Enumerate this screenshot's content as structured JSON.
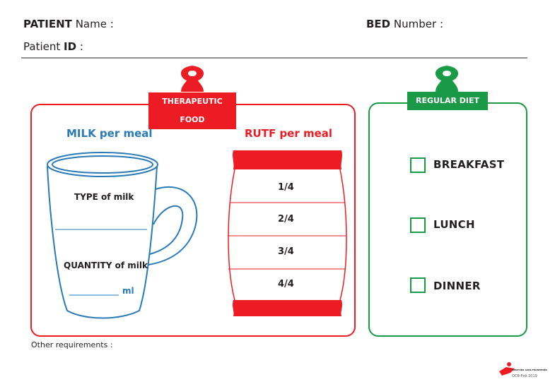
{
  "header": {
    "patient_bold": "PATIENT",
    "patient_name": "Name :",
    "bed_bold": "BED",
    "bed_number": "Number :",
    "patient_id_prefix": "Patient",
    "patient_id_bold": "ID",
    "patient_id_suffix": ":"
  },
  "therapeutic": {
    "label": "THERAPEUTIC FOOD",
    "milk_title": "MILK per meal",
    "type_of_milk": "TYPE of milk",
    "quantity_of_milk": "QUANTITY of milk",
    "ml": "ml",
    "rutf_title": "RUTF per meal",
    "rutf_portions": [
      "1/4",
      "2/4",
      "3/4",
      "4/4"
    ]
  },
  "regular": {
    "label": "REGULAR DIET",
    "meals": [
      "BREAKFAST",
      "LUNCH",
      "DINNER"
    ]
  },
  "footer": {
    "other_requirements": "Other requirements :",
    "logo_text": "MEDECINS SANS FRONTIERES",
    "version": "OCB-Feb 2019"
  },
  "colors": {
    "red": "#ed1c24",
    "green": "#1a9a47",
    "blue": "#2a7ab8"
  }
}
